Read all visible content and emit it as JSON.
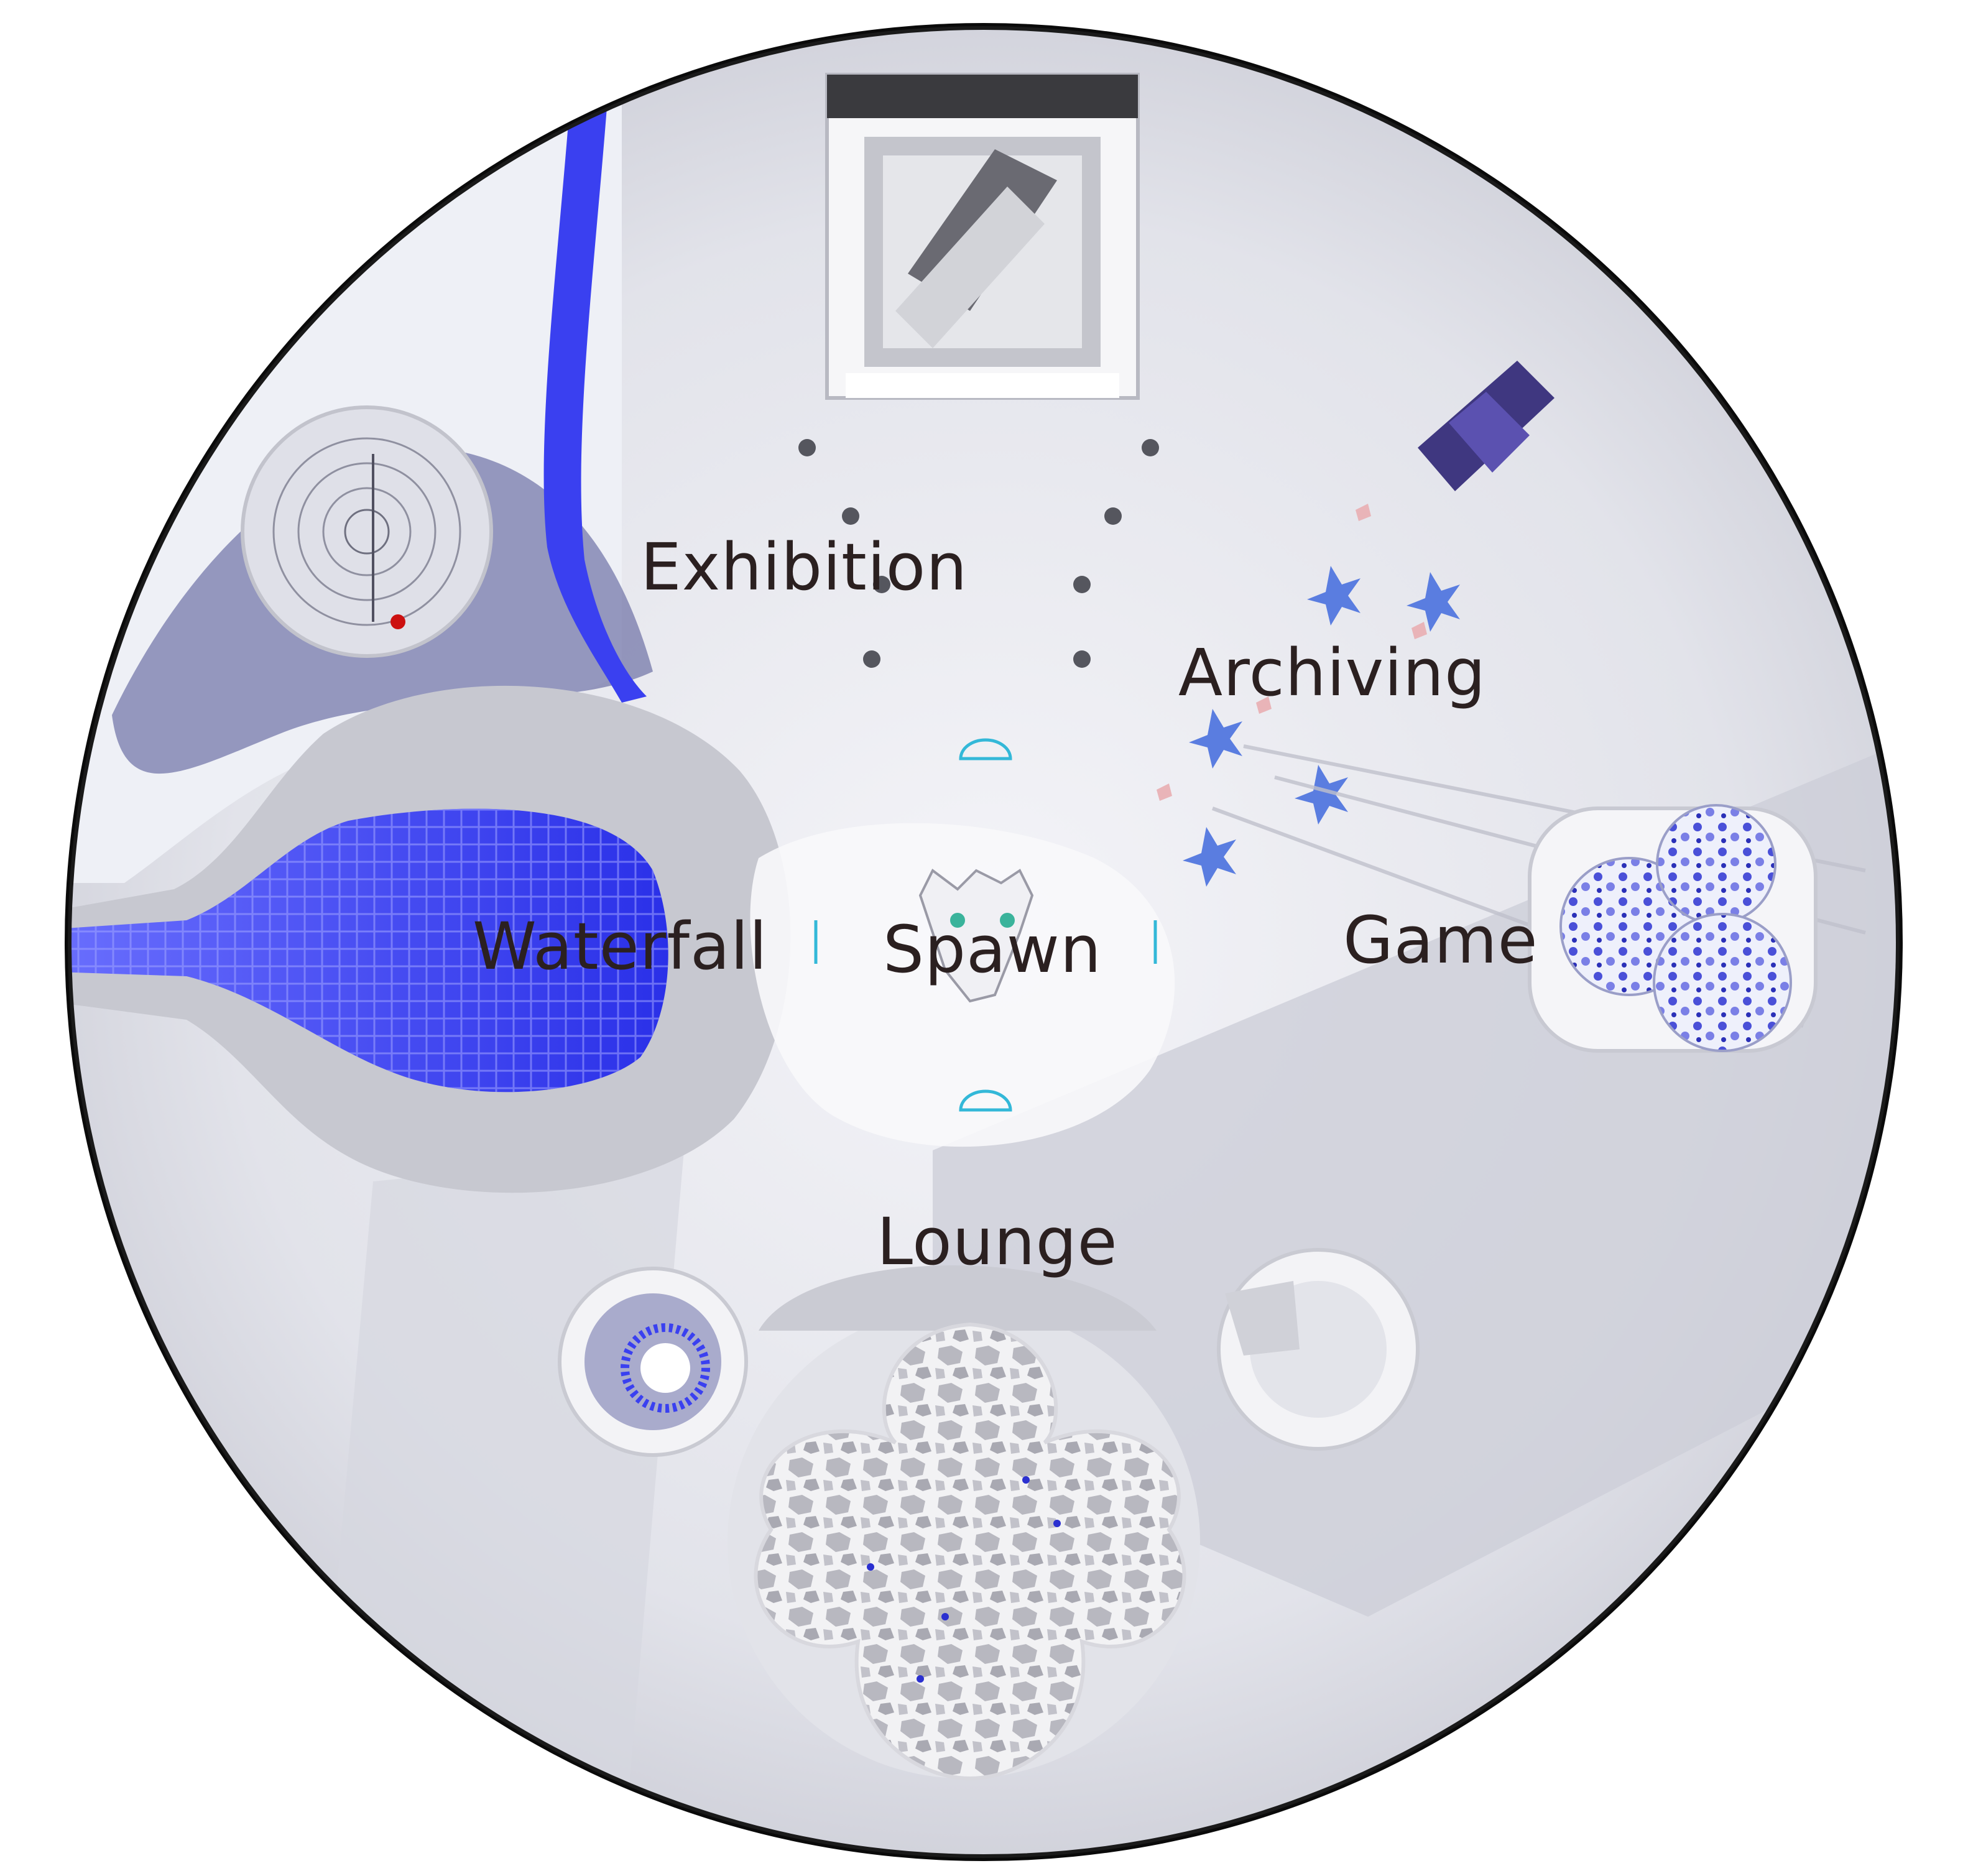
{
  "map": {
    "zones": {
      "exhibition": "Exhibition",
      "archiving": "Archiving",
      "waterfall": "Waterfall",
      "spawn": "Spawn",
      "game": "Game",
      "lounge": "Lounge"
    },
    "colors": {
      "floor": "#e3e4ea",
      "floor_shadow": "#c4c5cf",
      "water_blue": "#3a40f0",
      "rim": "#0a0a0a",
      "accent_purple": "#4a3f8c",
      "label_text": "#2b2020"
    },
    "icons": {
      "spawn_marker": "cat-face-icon",
      "archive_object": "purple-box-icon",
      "game_object": "geodesic-sphere-icon",
      "lounge_object": "lattice-flower-icon",
      "exhibition_object": "framed-pavilion-icon"
    }
  }
}
